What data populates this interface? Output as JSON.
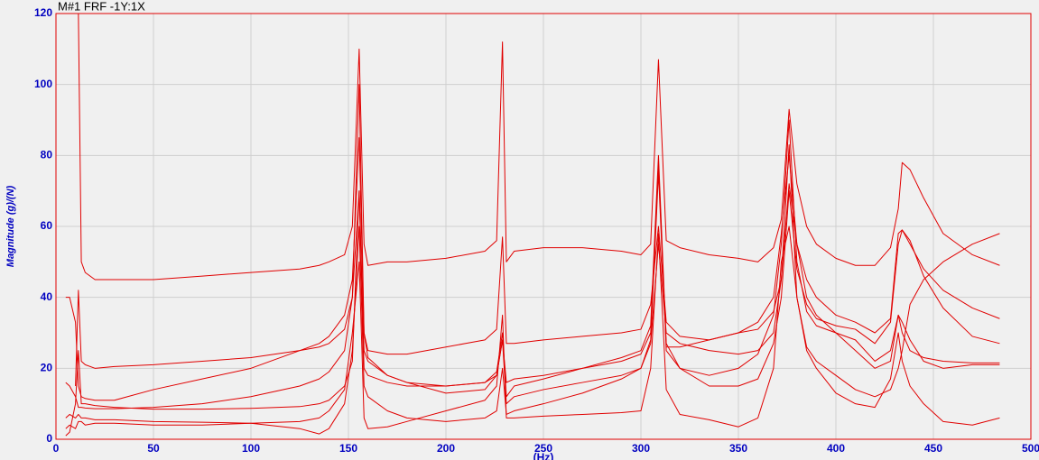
{
  "chart_data": {
    "type": "line",
    "title": "M#1 FRF -1Y:1X",
    "y_label": "Magnitude (g)/(N)",
    "x_label": "(Hz)",
    "grid": true,
    "xlim": [
      0,
      500
    ],
    "ylim": [
      0,
      120
    ],
    "xticks": [
      0,
      50,
      100,
      150,
      200,
      250,
      300,
      350,
      400,
      450,
      500
    ],
    "yticks": [
      0,
      20,
      40,
      60,
      80,
      100,
      120
    ],
    "x": [
      5,
      7,
      10,
      11.5,
      13,
      15,
      20,
      30,
      50,
      75,
      100,
      125,
      135,
      140,
      148,
      152,
      155.5,
      158,
      160,
      170,
      180,
      200,
      220,
      226,
      229,
      231,
      235,
      250,
      270,
      290,
      300,
      305,
      309,
      313,
      320,
      335,
      350,
      360,
      368,
      372,
      376,
      380,
      385,
      390,
      400,
      410,
      420,
      428,
      432,
      434,
      438,
      445,
      455,
      470,
      484
    ],
    "series": [
      {
        "color": "#e00000",
        "values": [
          null,
          null,
          null,
          120,
          50,
          47,
          45,
          45,
          45,
          46,
          47,
          48,
          49,
          50,
          52,
          60,
          110,
          55,
          49,
          50,
          50,
          51,
          53,
          56,
          112,
          50,
          53,
          54,
          54,
          53,
          52,
          55,
          107,
          56,
          54,
          52,
          51,
          50,
          54,
          62,
          93,
          72,
          60,
          55,
          51,
          49,
          49,
          54,
          65,
          78,
          76,
          68,
          58,
          52,
          49
        ]
      },
      {
        "color": "#e00000",
        "values": [
          null,
          null,
          15,
          42,
          22,
          21,
          20,
          20.5,
          21,
          22,
          23,
          25,
          26,
          27,
          31,
          40,
          100,
          30,
          25,
          24,
          24,
          26,
          28,
          31,
          57,
          27,
          27,
          28,
          29,
          30,
          31,
          38,
          60,
          33,
          29,
          28,
          30,
          31,
          36,
          45,
          72,
          55,
          45,
          40,
          35,
          33,
          30,
          34,
          58,
          59,
          55,
          48,
          42,
          37,
          34
        ]
      },
      {
        "color": "#e00000",
        "values": [
          40,
          40,
          33,
          15,
          12,
          11.5,
          11,
          11,
          14,
          17,
          20,
          25,
          27,
          29,
          35,
          45,
          85,
          30,
          23,
          18,
          16,
          15,
          16,
          19,
          30,
          12,
          15,
          17,
          20,
          23,
          25,
          32,
          80,
          27,
          20,
          15,
          15,
          17,
          27,
          40,
          70,
          48,
          38,
          34,
          32,
          31,
          27,
          33,
          55,
          59,
          56,
          46,
          37,
          29,
          27
        ]
      },
      {
        "color": "#e00000",
        "values": [
          16,
          15,
          12,
          9,
          9,
          8.8,
          8.6,
          8.6,
          9,
          10,
          12,
          15,
          17,
          19,
          25,
          40,
          70,
          20,
          18,
          16,
          15,
          15,
          16,
          18,
          28,
          16,
          17,
          18,
          20,
          22,
          24,
          30,
          78,
          25,
          20,
          18,
          20,
          24,
          35,
          55,
          90,
          50,
          36,
          32,
          30,
          25,
          20,
          22,
          35,
          33,
          28,
          22,
          20,
          21,
          21
        ]
      },
      {
        "color": "#e00000",
        "values": [
          6,
          7,
          6,
          7,
          6,
          6,
          5.5,
          5.5,
          5,
          4.8,
          4.5,
          3,
          1.5,
          3,
          10,
          25,
          60,
          15,
          12,
          8,
          6,
          5,
          6,
          8,
          20,
          7,
          8,
          10,
          13,
          17,
          20,
          27,
          55,
          30,
          27,
          25,
          24,
          25,
          30,
          45,
          83,
          40,
          26,
          22,
          18,
          14,
          12,
          14,
          20,
          25,
          38,
          45,
          50,
          55,
          58
        ]
      },
      {
        "color": "#e00000",
        "values": [
          3,
          4,
          3,
          5,
          5,
          4,
          4.5,
          4.5,
          4,
          4,
          4.5,
          5,
          6,
          8,
          14,
          30,
          50,
          6,
          3,
          3.5,
          5,
          8,
          11,
          15,
          35,
          6,
          6,
          6.5,
          7,
          7.5,
          8,
          20,
          58,
          14,
          7,
          5.5,
          3.5,
          6,
          20,
          50,
          60,
          40,
          25,
          20,
          13,
          10,
          9,
          17,
          30,
          22,
          15,
          10,
          5,
          4,
          6
        ]
      },
      {
        "color": "#e00000",
        "values": [
          1,
          2,
          10,
          25,
          10,
          10,
          9.5,
          9,
          8.5,
          8.5,
          8.7,
          9.2,
          10,
          11,
          15,
          22,
          70,
          25,
          22,
          18,
          16,
          13,
          14,
          18,
          28,
          10,
          12,
          14,
          16,
          18,
          20,
          28,
          75,
          26,
          26,
          28,
          30,
          33,
          40,
          58,
          80,
          55,
          40,
          35,
          30,
          28,
          22,
          25,
          35,
          30,
          25,
          23,
          22,
          21.5,
          21.5
        ]
      }
    ]
  }
}
